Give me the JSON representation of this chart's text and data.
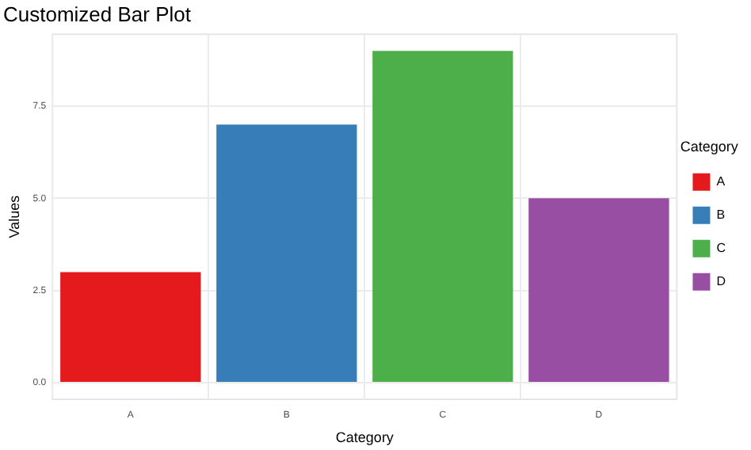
{
  "chart_data": {
    "type": "bar",
    "title": "Customized Bar Plot",
    "xlabel": "Category",
    "ylabel": "Values",
    "legend_title": "Category",
    "categories": [
      "A",
      "B",
      "C",
      "D"
    ],
    "series": [
      {
        "name": "A",
        "color": "#e41a1c",
        "values": [
          3,
          null,
          null,
          null
        ]
      },
      {
        "name": "B",
        "color": "#377eb8",
        "values": [
          null,
          7,
          null,
          null
        ]
      },
      {
        "name": "C",
        "color": "#4daf4a",
        "values": [
          null,
          null,
          9,
          null
        ]
      },
      {
        "name": "D",
        "color": "#984ea3",
        "values": [
          null,
          null,
          null,
          5
        ]
      }
    ],
    "ylim": [
      -0.45,
      9.45
    ],
    "yticks": [
      {
        "value": 0,
        "label": "0.0"
      },
      {
        "value": 2.5,
        "label": "2.5"
      },
      {
        "value": 5,
        "label": "5.0"
      },
      {
        "value": 7.5,
        "label": "7.5"
      }
    ],
    "grid": true,
    "legend": "right"
  }
}
